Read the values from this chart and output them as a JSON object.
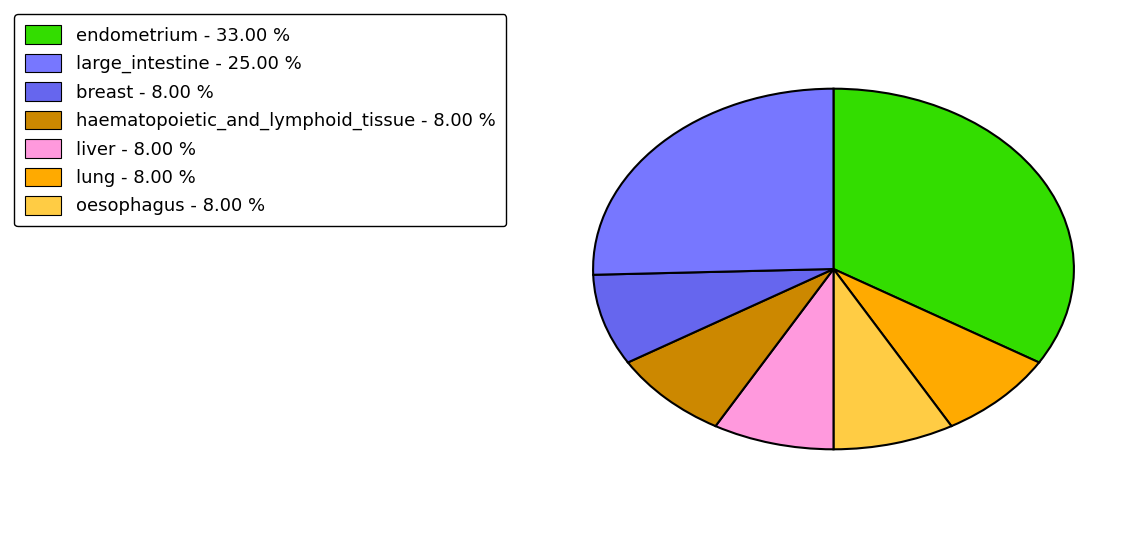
{
  "labels": [
    "endometrium",
    "lung",
    "oesophagus",
    "liver",
    "haematopoietic_and_lymphoid_tissue",
    "breast",
    "large_intestine"
  ],
  "values": [
    33.0,
    8.0,
    8.0,
    8.0,
    8.0,
    8.0,
    25.0
  ],
  "colors": [
    "#33dd00",
    "#ffaa00",
    "#ffcc44",
    "#ff99dd",
    "#cc8800",
    "#6666ee",
    "#7777ff"
  ],
  "legend_labels": [
    "endometrium - 33.00 %",
    "large_intestine - 25.00 %",
    "breast - 8.00 %",
    "haematopoietic_and_lymphoid_tissue - 8.00 %",
    "liver - 8.00 %",
    "lung - 8.00 %",
    "oesophagus - 8.00 %"
  ],
  "legend_colors": [
    "#33dd00",
    "#7777ff",
    "#6666ee",
    "#cc8800",
    "#ff99dd",
    "#ffaa00",
    "#ffcc44"
  ],
  "startangle": 90,
  "figsize": [
    11.34,
    5.38
  ],
  "dpi": 100,
  "aspect_ratio": 0.75
}
